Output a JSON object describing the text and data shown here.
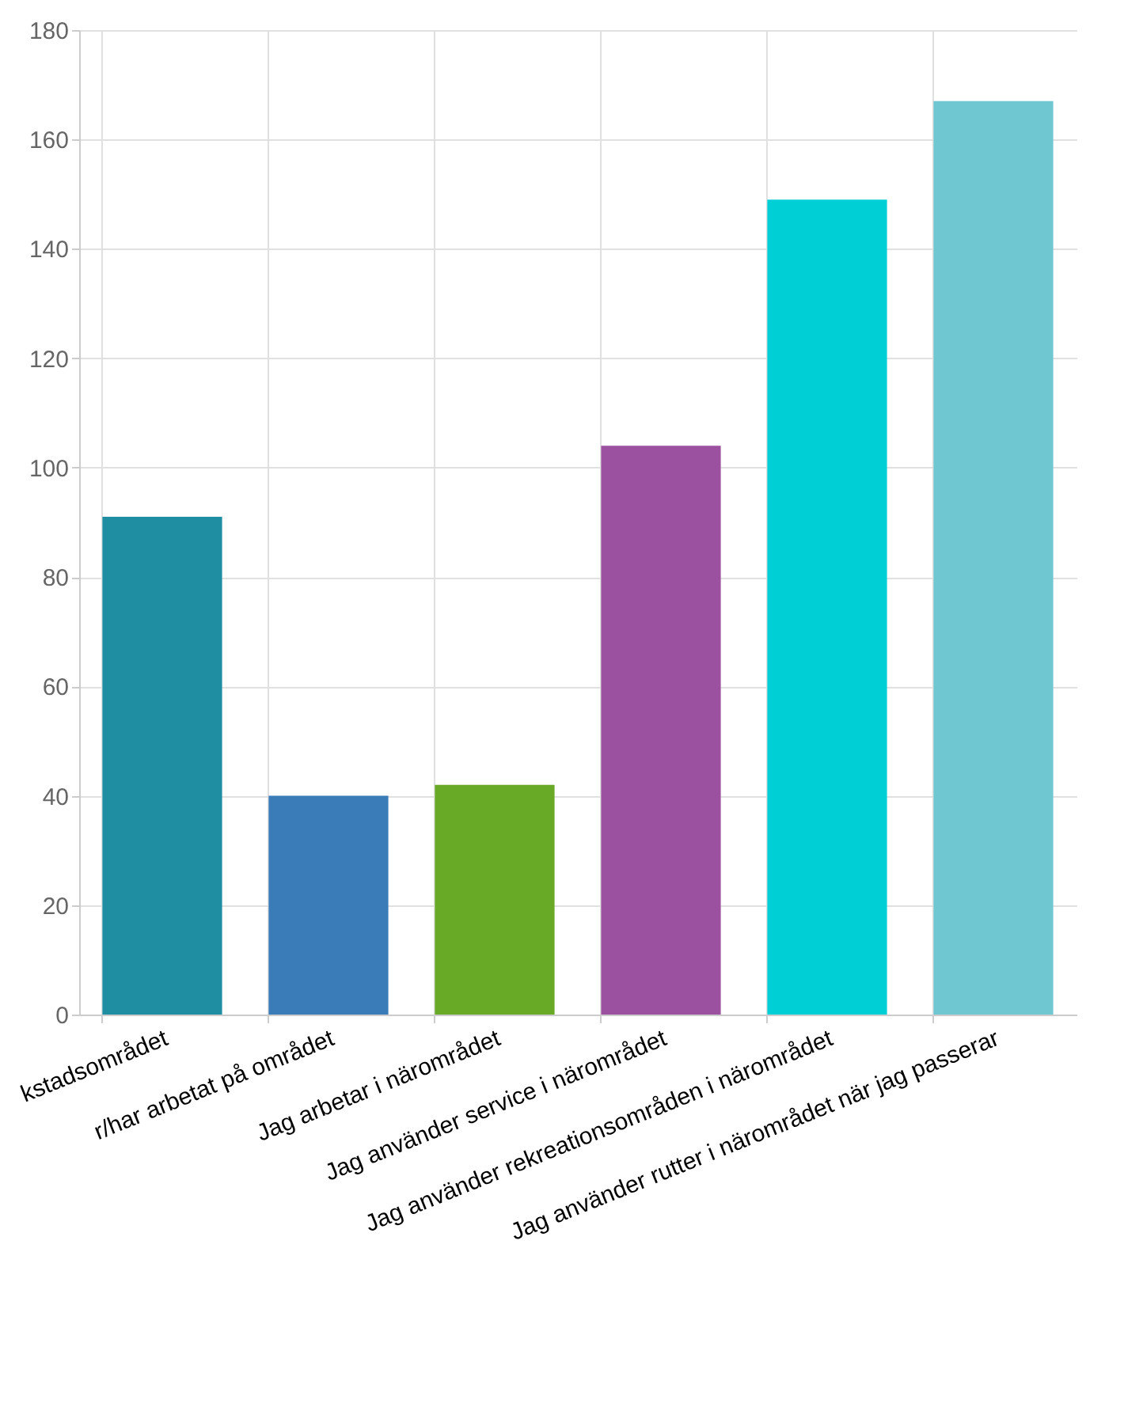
{
  "chart_data": {
    "type": "bar",
    "categories": [
      "kstadsområdet",
      "r/har arbetat på området",
      "Jag arbetar i närområdet",
      "Jag använder service i närområdet",
      "Jag använder rekreationsområden i närområdet",
      "Jag använder rutter i närområdet när jag passerar"
    ],
    "values": [
      91,
      40,
      42,
      104,
      149,
      167
    ],
    "colors": [
      "#1f8ea3",
      "#3a7cb8",
      "#68a925",
      "#9b51a0",
      "#00d0d6",
      "#6ec7d1"
    ],
    "ylim": [
      0,
      180
    ],
    "yticks": [
      0,
      20,
      40,
      60,
      80,
      100,
      120,
      140,
      160,
      180
    ],
    "grid": true
  }
}
